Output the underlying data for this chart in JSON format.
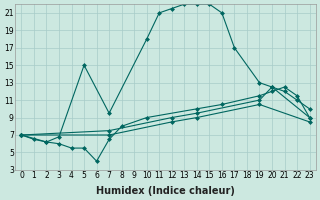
{
  "xlabel": "Humidex (Indice chaleur)",
  "bg_color": "#cce8e0",
  "grid_color": "#a8ccc8",
  "line_color": "#006660",
  "xlim": [
    -0.5,
    23.5
  ],
  "ylim": [
    3,
    22
  ],
  "xticks": [
    0,
    1,
    2,
    3,
    4,
    5,
    6,
    7,
    8,
    9,
    10,
    11,
    12,
    13,
    14,
    15,
    16,
    17,
    18,
    19,
    20,
    21,
    22,
    23
  ],
  "yticks": [
    3,
    5,
    7,
    9,
    11,
    13,
    15,
    17,
    19,
    21
  ],
  "line1_x": [
    0,
    1,
    2,
    3,
    5,
    7,
    10,
    11,
    12,
    13,
    14,
    15,
    16,
    17,
    19,
    20,
    21,
    22,
    23
  ],
  "line1_y": [
    7,
    6.5,
    6.2,
    6.8,
    15,
    9.5,
    18,
    21,
    21.5,
    22,
    22,
    22,
    21,
    17,
    13,
    12.5,
    12,
    11,
    10
  ],
  "line2_x": [
    0,
    2,
    3,
    4,
    5,
    6,
    7,
    8,
    10,
    14,
    16,
    19,
    20,
    21,
    22,
    23
  ],
  "line2_y": [
    7,
    6.2,
    6,
    5.5,
    5.5,
    4,
    6.5,
    8,
    9,
    10,
    10.5,
    11.5,
    12,
    12.5,
    11.5,
    9
  ],
  "line3_x": [
    0,
    7,
    12,
    14,
    19,
    20,
    23
  ],
  "line3_y": [
    7,
    7.5,
    9,
    9.5,
    11,
    12.5,
    9
  ],
  "line4_x": [
    0,
    7,
    12,
    14,
    19,
    23
  ],
  "line4_y": [
    7,
    7,
    8.5,
    9,
    10.5,
    8.5
  ],
  "marker_size": 2.5,
  "lw": 0.8,
  "xlabel_fontsize": 7,
  "tick_fontsize": 5.5
}
